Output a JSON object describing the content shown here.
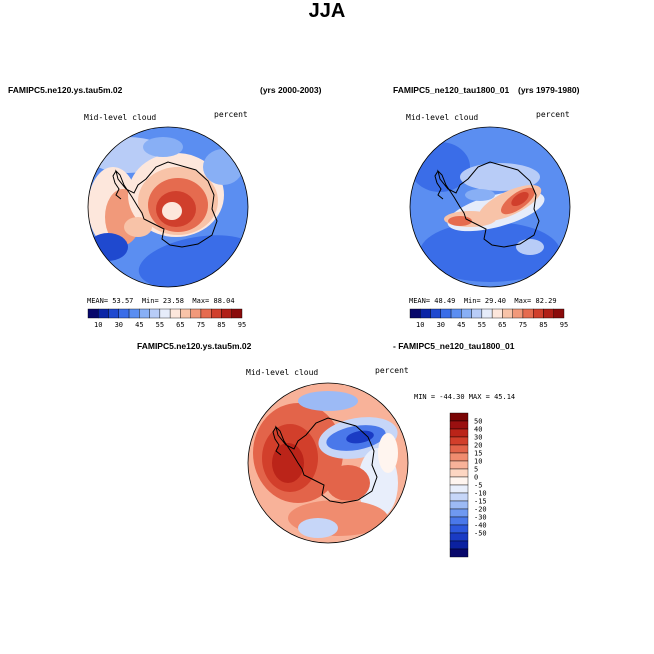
{
  "title": "JJA",
  "colors": {
    "scale": [
      "#08086b",
      "#0b25a6",
      "#1f49cf",
      "#3a6de8",
      "#5b8ef1",
      "#88aff5",
      "#b8ccf7",
      "#e6ecfa",
      "#fde7dc",
      "#f8c3a8",
      "#f1997a",
      "#e56b4f",
      "#d03f2c",
      "#b01f17",
      "#8a0b0b"
    ],
    "diff_scale": [
      "#08086b",
      "#0b21a0",
      "#1a3bc4",
      "#2d58dd",
      "#4a78ea",
      "#6f99f1",
      "#9cbaf5",
      "#c6d6f8",
      "#e8eefb",
      "#fff5ef",
      "#fdd6c2",
      "#f8b299",
      "#f08c6f",
      "#e3644a",
      "#d23f2b",
      "#bb2419",
      "#9a1010",
      "#7a0505"
    ],
    "coast": "#000000"
  },
  "chart_data": [
    {
      "type": "heatmap",
      "projection": "south-polar-stereographic",
      "case": "FAMIPC5.ne120.ys.tau5m.02",
      "years": "(yrs 2000-2003)",
      "variable": "Mid-level cloud",
      "units": "percent",
      "stats": {
        "mean_label": "MEAN=",
        "mean": "53.57",
        "min_label": "Min=",
        "min": "23.58",
        "max_label": "Max=",
        "max": "88.04"
      },
      "colorbar_ticks": [
        "10",
        "30",
        "45",
        "55",
        "65",
        "75",
        "85",
        "95"
      ],
      "contour_levels": [
        10,
        20,
        30,
        40,
        45,
        50,
        55,
        60,
        65,
        70,
        75,
        80,
        85,
        90,
        95
      ]
    },
    {
      "type": "heatmap",
      "projection": "south-polar-stereographic",
      "case": "FAMIPC5_ne120_tau1800_01",
      "years": "(yrs 1979-1980)",
      "variable": "Mid-level cloud",
      "units": "percent",
      "stats": {
        "mean_label": "MEAN=",
        "mean": "48.49",
        "min_label": "Min=",
        "min": "29.40",
        "max_label": "Max=",
        "max": "82.29"
      },
      "colorbar_ticks": [
        "10",
        "30",
        "45",
        "55",
        "65",
        "75",
        "85",
        "95"
      ],
      "contour_levels": [
        10,
        20,
        30,
        40,
        45,
        50,
        55,
        60,
        65,
        70,
        75,
        80,
        85,
        90,
        95
      ]
    },
    {
      "type": "heatmap",
      "projection": "south-polar-stereographic",
      "case_a": "FAMIPC5.ne120.ys.tau5m.02",
      "case_b": "- FAMIPC5_ne120_tau1800_01",
      "variable": "Mid-level cloud",
      "units": "percent",
      "stats_text": "MIN = -44.30  MAX =  45.14",
      "stats": {
        "min": -44.3,
        "max": 45.14
      },
      "colorbar_ticks": [
        "50",
        "40",
        "30",
        "20",
        "15",
        "10",
        "5",
        "0",
        "-5",
        "-10",
        "-15",
        "-20",
        "-30",
        "-40",
        "-50"
      ],
      "contour_levels": [
        -50,
        -40,
        -30,
        -20,
        -15,
        -10,
        -5,
        0,
        5,
        10,
        15,
        20,
        30,
        40,
        50
      ]
    }
  ]
}
